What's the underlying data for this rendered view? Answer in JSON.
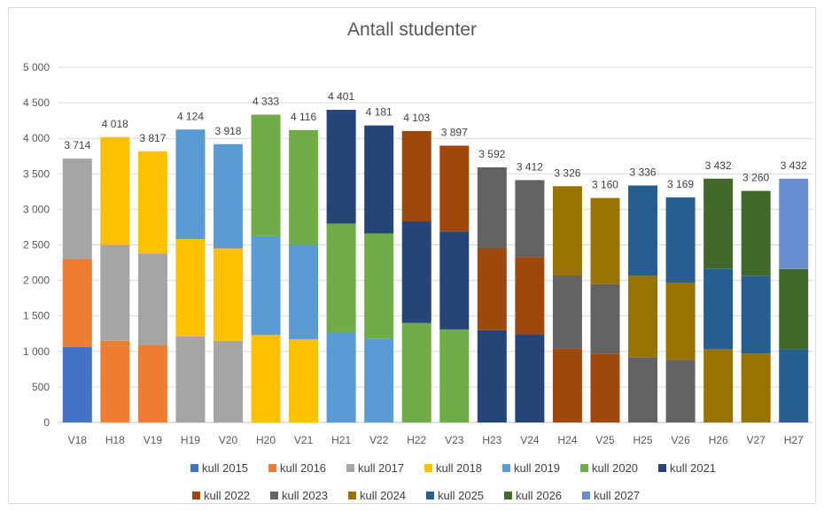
{
  "chart_data": {
    "type": "bar",
    "stacked": true,
    "title": "Antall studenter",
    "xlabel": "",
    "ylabel": "",
    "ylim": [
      0,
      5000
    ],
    "y_ticks": [
      "0",
      "500",
      "1 000",
      "1 500",
      "2 000",
      "2 500",
      "3 000",
      "3 500",
      "4 000",
      "4 500",
      "5 000"
    ],
    "grid": true,
    "legend_position": "bottom",
    "categories": [
      "V18",
      "H18",
      "V19",
      "H19",
      "V20",
      "H20",
      "V21",
      "H21",
      "V22",
      "H22",
      "V23",
      "H23",
      "V24",
      "H24",
      "V25",
      "H25",
      "V26",
      "H26",
      "V27",
      "H27"
    ],
    "totals": [
      3714,
      4018,
      3817,
      4124,
      3918,
      4333,
      4116,
      4401,
      4181,
      4103,
      3897,
      3592,
      3412,
      3326,
      3160,
      3336,
      3169,
      3432,
      3260,
      3432
    ],
    "total_labels": [
      "3 714",
      "4 018",
      "3 817",
      "4 124",
      "3 918",
      "4 333",
      "4 116",
      "4 401",
      "4 181",
      "4 103",
      "3 897",
      "3 592",
      "3 412",
      "3 326",
      "3 160",
      "3 336",
      "3 169",
      "3 432",
      "3 260",
      "3 432"
    ],
    "series": [
      {
        "name": "kull 2015",
        "color": "#4472C4",
        "values": [
          1060,
          0,
          0,
          0,
          0,
          0,
          0,
          0,
          0,
          0,
          0,
          0,
          0,
          0,
          0,
          0,
          0,
          0,
          0,
          0
        ]
      },
      {
        "name": "kull 2016",
        "color": "#ED7D31",
        "values": [
          1240,
          1150,
          1090,
          0,
          0,
          0,
          0,
          0,
          0,
          0,
          0,
          0,
          0,
          0,
          0,
          0,
          0,
          0,
          0,
          0
        ]
      },
      {
        "name": "kull 2017",
        "color": "#A5A5A5",
        "values": [
          1414,
          1350,
          1290,
          1210,
          1150,
          0,
          0,
          0,
          0,
          0,
          0,
          0,
          0,
          0,
          0,
          0,
          0,
          0,
          0,
          0
        ]
      },
      {
        "name": "kull 2018",
        "color": "#FFC000",
        "values": [
          0,
          1518,
          1437,
          1370,
          1300,
          1230,
          1170,
          0,
          0,
          0,
          0,
          0,
          0,
          0,
          0,
          0,
          0,
          0,
          0,
          0
        ]
      },
      {
        "name": "kull 2019",
        "color": "#5B9BD5",
        "values": [
          0,
          0,
          0,
          1544,
          1468,
          1390,
          1330,
          1260,
          1180,
          0,
          0,
          0,
          0,
          0,
          0,
          0,
          0,
          0,
          0,
          0
        ]
      },
      {
        "name": "kull 2020",
        "color": "#70AD47",
        "values": [
          0,
          0,
          0,
          0,
          0,
          1713,
          1616,
          1540,
          1480,
          1400,
          1310,
          0,
          0,
          0,
          0,
          0,
          0,
          0,
          0,
          0
        ]
      },
      {
        "name": "kull 2021",
        "color": "#264478",
        "values": [
          0,
          0,
          0,
          0,
          0,
          0,
          0,
          1601,
          1521,
          1430,
          1380,
          1300,
          1240,
          0,
          0,
          0,
          0,
          0,
          0,
          0
        ]
      },
      {
        "name": "kull 2022",
        "color": "#9E480E",
        "values": [
          0,
          0,
          0,
          0,
          0,
          0,
          0,
          0,
          0,
          1273,
          1207,
          1150,
          1090,
          1040,
          970,
          0,
          0,
          0,
          0,
          0
        ]
      },
      {
        "name": "kull 2023",
        "color": "#636363",
        "values": [
          0,
          0,
          0,
          0,
          0,
          0,
          0,
          0,
          0,
          0,
          0,
          1142,
          1082,
          1030,
          980,
          920,
          880,
          0,
          0,
          0
        ]
      },
      {
        "name": "kull 2024",
        "color": "#997300",
        "values": [
          0,
          0,
          0,
          0,
          0,
          0,
          0,
          0,
          0,
          0,
          0,
          0,
          0,
          1256,
          1210,
          1150,
          1090,
          1030,
          970,
          0
        ]
      },
      {
        "name": "kull 2025",
        "color": "#255E91",
        "values": [
          0,
          0,
          0,
          0,
          0,
          0,
          0,
          0,
          0,
          0,
          0,
          0,
          0,
          0,
          0,
          1266,
          1199,
          1130,
          1090,
          1030
        ]
      },
      {
        "name": "kull 2026",
        "color": "#43682B",
        "values": [
          0,
          0,
          0,
          0,
          0,
          0,
          0,
          0,
          0,
          0,
          0,
          0,
          0,
          0,
          0,
          0,
          0,
          1272,
          1200,
          1130
        ]
      },
      {
        "name": "kull 2027",
        "color": "#698ED0",
        "values": [
          0,
          0,
          0,
          0,
          0,
          0,
          0,
          0,
          0,
          0,
          0,
          0,
          0,
          0,
          0,
          0,
          0,
          0,
          0,
          1272
        ]
      }
    ]
  }
}
